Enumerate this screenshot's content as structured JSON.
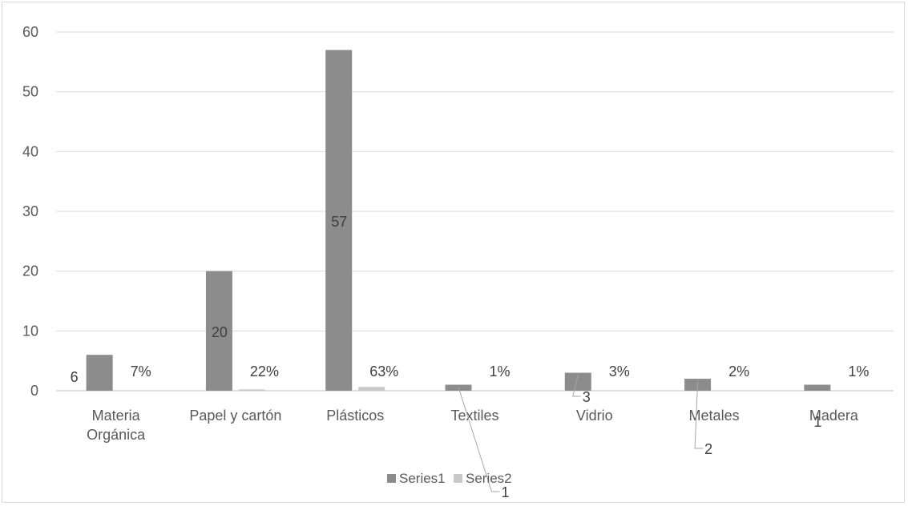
{
  "chart_data": {
    "type": "bar",
    "categories": [
      [
        "Materia",
        "Orgánica"
      ],
      [
        "Papel y cartón"
      ],
      [
        "Plásticos"
      ],
      [
        "Textiles"
      ],
      [
        "Vidrio"
      ],
      [
        "Metales"
      ],
      [
        "Madera"
      ]
    ],
    "series": [
      {
        "name": "Series1",
        "values": [
          6,
          20,
          57,
          1,
          3,
          2,
          1
        ],
        "labels": [
          "6",
          "20",
          "57",
          "1",
          "3",
          "2",
          "1"
        ],
        "color": "#8c8c8c"
      },
      {
        "name": "Series2",
        "values": [
          0.07,
          0.22,
          0.63,
          0.01,
          0.03,
          0.02,
          0.01
        ],
        "labels": [
          "7%",
          "22%",
          "63%",
          "1%",
          "3%",
          "2%",
          "1%"
        ],
        "color": "#c8c8c8"
      }
    ],
    "ylim": [
      0,
      60
    ],
    "yticks": [
      "0",
      "10",
      "20",
      "30",
      "40",
      "50",
      "60"
    ],
    "grid": true,
    "legend": "bottom",
    "colors": {
      "gridline": "#d9d9d9",
      "axis": "#bfbfbf",
      "leader": "#a6a6a6"
    }
  }
}
